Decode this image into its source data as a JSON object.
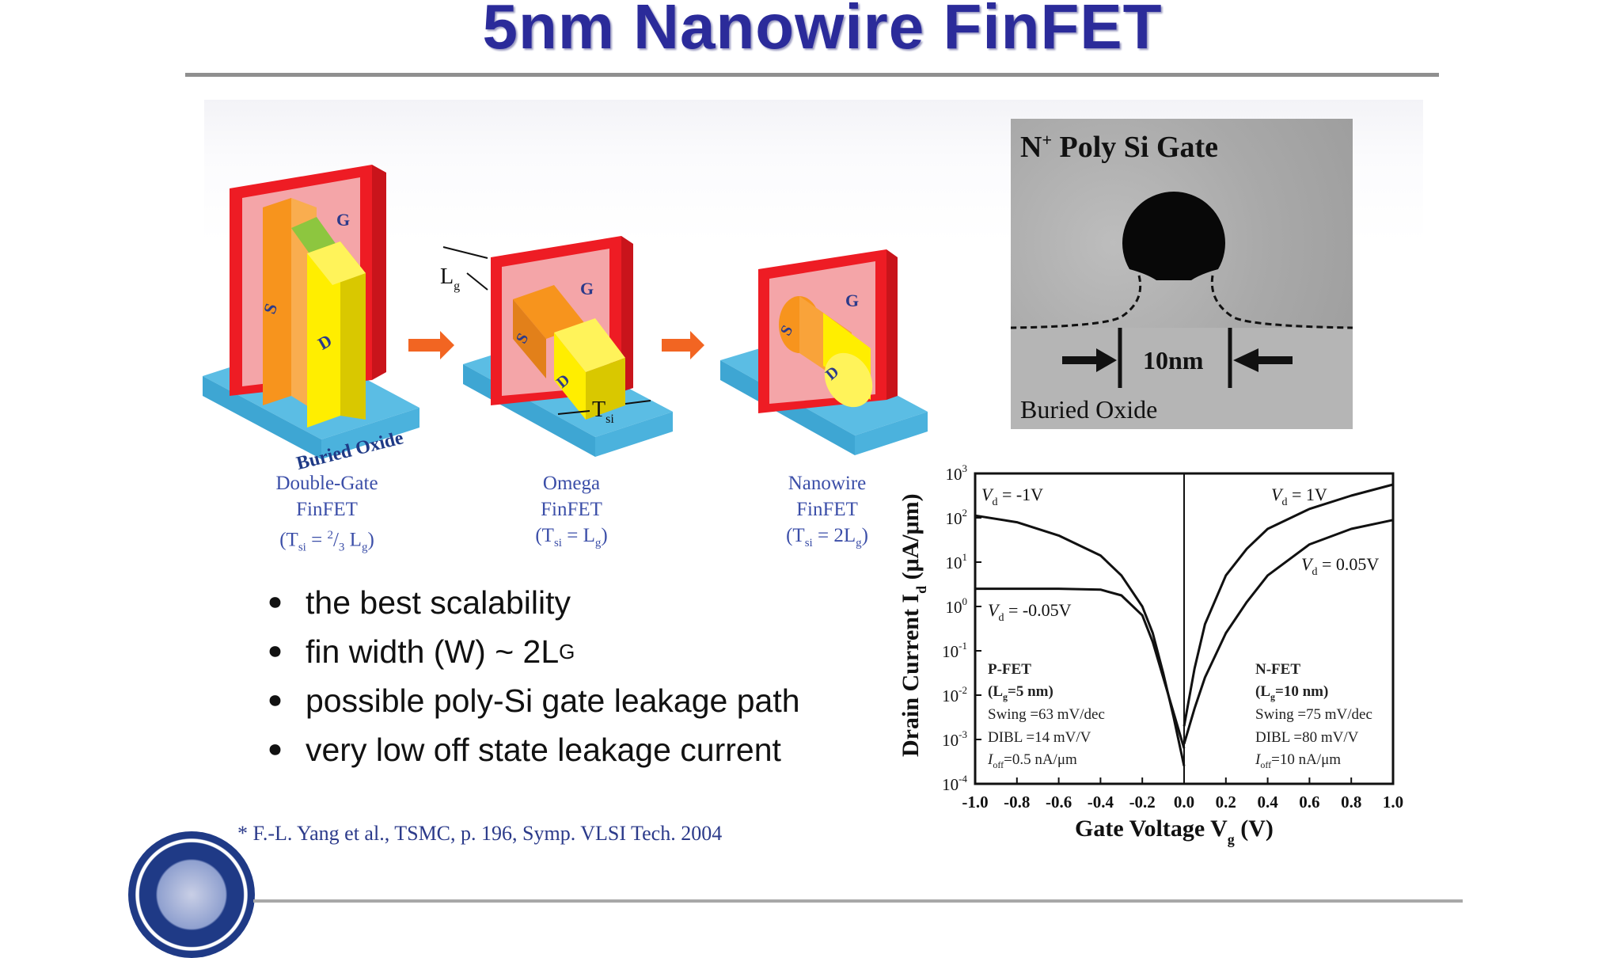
{
  "title": "5nm Nanowire FinFET",
  "figure": {
    "labels": {
      "g": "G",
      "s": "S",
      "d": "D",
      "buried_oxide": "Buried Oxide",
      "lg_main": "L",
      "lg_sub": "g",
      "tsi_main": "T",
      "tsi_sub": "si"
    },
    "devices": [
      {
        "name": "Double-Gate",
        "type": "FinFET",
        "rel_pre": "(T",
        "rel_sub": "si",
        "rel_mid": " = ",
        "rel_sup": "2",
        "rel_frac": "/",
        "rel_den": "3",
        "rel_tail": " L",
        "rel_tail_sub": "g",
        "rel_end": ")"
      },
      {
        "name": "Omega",
        "type": "FinFET",
        "rel_pre": "(T",
        "rel_sub": "si",
        "rel_mid": " = ",
        "rel_tail": " L",
        "rel_tail_sub": "g",
        "rel_end": ")"
      },
      {
        "name": "Nanowire",
        "type": "FinFET",
        "rel_pre": "(T",
        "rel_sub": "si",
        "rel_mid": " = ",
        "rel_tail": " 2L",
        "rel_tail_sub": "g",
        "rel_end": ")"
      }
    ]
  },
  "bullets": [
    {
      "text": "the best scalability"
    },
    {
      "text": "fin width (W) ~ 2L",
      "sub": "G"
    },
    {
      "text": "possible poly-Si gate leakage path"
    },
    {
      "text": "very low off state leakage current"
    }
  ],
  "bullet_glyph": "⏺",
  "tem": {
    "gate_label_pre": "N",
    "gate_label_sup": "+",
    "gate_label_post": " Poly Si Gate",
    "dimension": "10nm",
    "oxide_label": "Buried Oxide"
  },
  "reference": "* F.-L. Yang et al., TSMC, p. 196, Symp. VLSI Tech. 2004",
  "colors": {
    "title": "#2b2b9a",
    "gate_frame": "#ee1c24",
    "gate_fill": "#f4a5a8",
    "source": "#f7941d",
    "drain": "#ffee00",
    "green": "#8dc63f",
    "oxide": "#5bbde4",
    "arrow": "#f26522",
    "caption": "#3b4ea8"
  },
  "chart_data": {
    "type": "line",
    "xlabel": "Gate Voltage V",
    "xlabel_sub": "g",
    "xlabel_unit": " (V)",
    "ylabel": "Drain Current I",
    "ylabel_sub": "d",
    "ylabel_unit": " (μA/μm)",
    "xlim": [
      -1.0,
      1.0
    ],
    "ylim": [
      -4,
      3
    ],
    "log_y": true,
    "x_ticks": [
      "-1.0",
      "-0.8",
      "-0.6",
      "-0.4",
      "-0.2",
      "0.0",
      "0.2",
      "0.4",
      "0.6",
      "0.8",
      "1.0"
    ],
    "y_ticks": [
      {
        "base": "10",
        "exp": "-4"
      },
      {
        "base": "10",
        "exp": "-3"
      },
      {
        "base": "10",
        "exp": "-2"
      },
      {
        "base": "10",
        "exp": "-1"
      },
      {
        "base": "10",
        "exp": "0"
      },
      {
        "base": "10",
        "exp": "1"
      },
      {
        "base": "10",
        "exp": "2"
      },
      {
        "base": "10",
        "exp": "3"
      }
    ],
    "series": [
      {
        "name": "Vd = -1V",
        "x": [
          -1.0,
          -0.8,
          -0.6,
          -0.4,
          -0.3,
          -0.2,
          -0.15,
          -0.1,
          -0.05,
          0.0
        ],
        "log10_y": [
          2.05,
          1.9,
          1.6,
          1.15,
          0.7,
          0.0,
          -0.6,
          -1.5,
          -2.5,
          -3.6
        ]
      },
      {
        "name": "Vd = -0.05V",
        "x": [
          -1.0,
          -0.6,
          -0.4,
          -0.3,
          -0.2,
          -0.15,
          -0.1,
          -0.05,
          0.0
        ],
        "log10_y": [
          0.4,
          0.4,
          0.38,
          0.25,
          -0.2,
          -0.8,
          -1.6,
          -2.4,
          -3.2
        ]
      },
      {
        "name": "Vd = 1V",
        "x": [
          0.0,
          0.05,
          0.1,
          0.2,
          0.3,
          0.4,
          0.6,
          0.8,
          1.0
        ],
        "log10_y": [
          -2.7,
          -1.4,
          -0.4,
          0.7,
          1.3,
          1.75,
          2.2,
          2.5,
          2.75
        ]
      },
      {
        "name": "Vd = 0.05V",
        "x": [
          0.0,
          0.05,
          0.1,
          0.2,
          0.3,
          0.4,
          0.6,
          0.8,
          1.0
        ],
        "log10_y": [
          -3.1,
          -2.3,
          -1.6,
          -0.6,
          0.1,
          0.7,
          1.4,
          1.75,
          1.95
        ]
      }
    ],
    "annotations": {
      "vd_m1": {
        "pre": "V",
        "sub": "d",
        "post": " = -1V"
      },
      "vd_p1": {
        "pre": "V",
        "sub": "d",
        "post": " = 1V"
      },
      "vd_p005": {
        "pre": "V",
        "sub": "d",
        "post": " = 0.05V"
      },
      "vd_m005": {
        "pre": "V",
        "sub": "d",
        "post": " = -0.05V"
      },
      "pfet": [
        "P-FET",
        "(L",
        "g",
        "=5 nm)",
        "Swing =63 mV/dec",
        "DIBL =14 mV/V",
        "I",
        "off",
        "=0.5 nA/μm"
      ],
      "nfet": [
        "N-FET",
        "(L",
        "g",
        "=10 nm)",
        "Swing =75 mV/dec",
        "DIBL =80 mV/V",
        "I",
        "off",
        "=10 nA/μm"
      ]
    }
  }
}
